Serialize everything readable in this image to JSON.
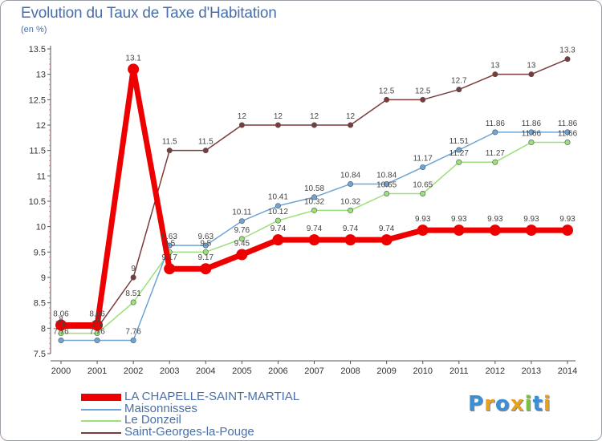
{
  "header": {
    "title": "Evolution du Taux de Taxe d'Habitation",
    "unit": "(en %)"
  },
  "brand": {
    "logo_text": "Proxiti"
  },
  "chart_data": {
    "type": "line",
    "title": "Evolution du Taux de Taxe d'Habitation",
    "ylabel": "(en %)",
    "xlabel": "",
    "x": [
      2000,
      2001,
      2002,
      2003,
      2004,
      2005,
      2006,
      2007,
      2008,
      2009,
      2010,
      2011,
      2012,
      2013,
      2014
    ],
    "ylim": [
      7.5,
      13.5
    ],
    "yticks": [
      7.5,
      8,
      8.5,
      9,
      9.5,
      10,
      10.5,
      11,
      11.5,
      12,
      12.5,
      13,
      13.5
    ],
    "yticks_labels": [
      "7.5",
      "8",
      "8.5",
      "9",
      "9.5",
      "10",
      "10.5",
      "11",
      "11.5",
      "12",
      "12.5",
      "13",
      "13.5"
    ],
    "grid": false,
    "legend_position": "bottom-left",
    "series": [
      {
        "name": "LA CHAPELLE-SAINT-MARTIAL",
        "color": "#ee0000",
        "values": [
          8.06,
          8.06,
          13.1,
          9.17,
          9.17,
          9.45,
          9.74,
          9.74,
          9.74,
          9.74,
          9.93,
          9.93,
          9.93,
          9.93,
          9.93
        ],
        "labels": [
          "8.06",
          "8.06",
          "13.1",
          "9.17",
          "9.17",
          "9.45",
          "9.74",
          "9.74",
          "9.74",
          "9.74",
          "9.93",
          "9.93",
          "9.93",
          "9.93",
          "9.93"
        ]
      },
      {
        "name": "Maisonnisses",
        "color": "#6fa4d4",
        "values": [
          7.76,
          7.76,
          7.76,
          9.63,
          9.63,
          10.11,
          10.41,
          10.58,
          10.84,
          10.84,
          11.17,
          11.51,
          11.86,
          11.86,
          11.86
        ],
        "labels": [
          "7.76",
          "7.76",
          "7.76",
          "9.63",
          "9.63",
          "10.11",
          "10.41",
          "10.58",
          "10.84",
          "10.84",
          "11.17",
          "11.51",
          "11.86",
          "11.86",
          "11.86"
        ]
      },
      {
        "name": "Le Donzeil",
        "color": "#9be07a",
        "values": [
          7.9,
          7.9,
          8.51,
          9.5,
          9.5,
          9.76,
          10.12,
          10.32,
          10.32,
          10.65,
          10.65,
          11.27,
          11.27,
          11.66,
          11.66
        ],
        "labels": [
          "7.9",
          "7.9",
          "8.51",
          "9.5",
          "9.5",
          "9.76",
          "10.12",
          "10.32",
          "10.32",
          "10.65",
          "10.65",
          "11.27",
          "11.27",
          "11.66",
          "11.66"
        ]
      },
      {
        "name": "Saint-Georges-la-Pouge",
        "color": "#7a3b3b",
        "values": [
          8,
          8,
          9,
          11.5,
          11.5,
          12,
          12,
          12,
          12,
          12.5,
          12.5,
          12.7,
          13,
          13,
          13.3
        ],
        "labels": [
          "8",
          "8",
          "9",
          "11.5",
          "11.5",
          "12",
          "12",
          "12",
          "12",
          "12.5",
          "12.5",
          "12.7",
          "13",
          "13",
          "13.3"
        ]
      }
    ]
  }
}
